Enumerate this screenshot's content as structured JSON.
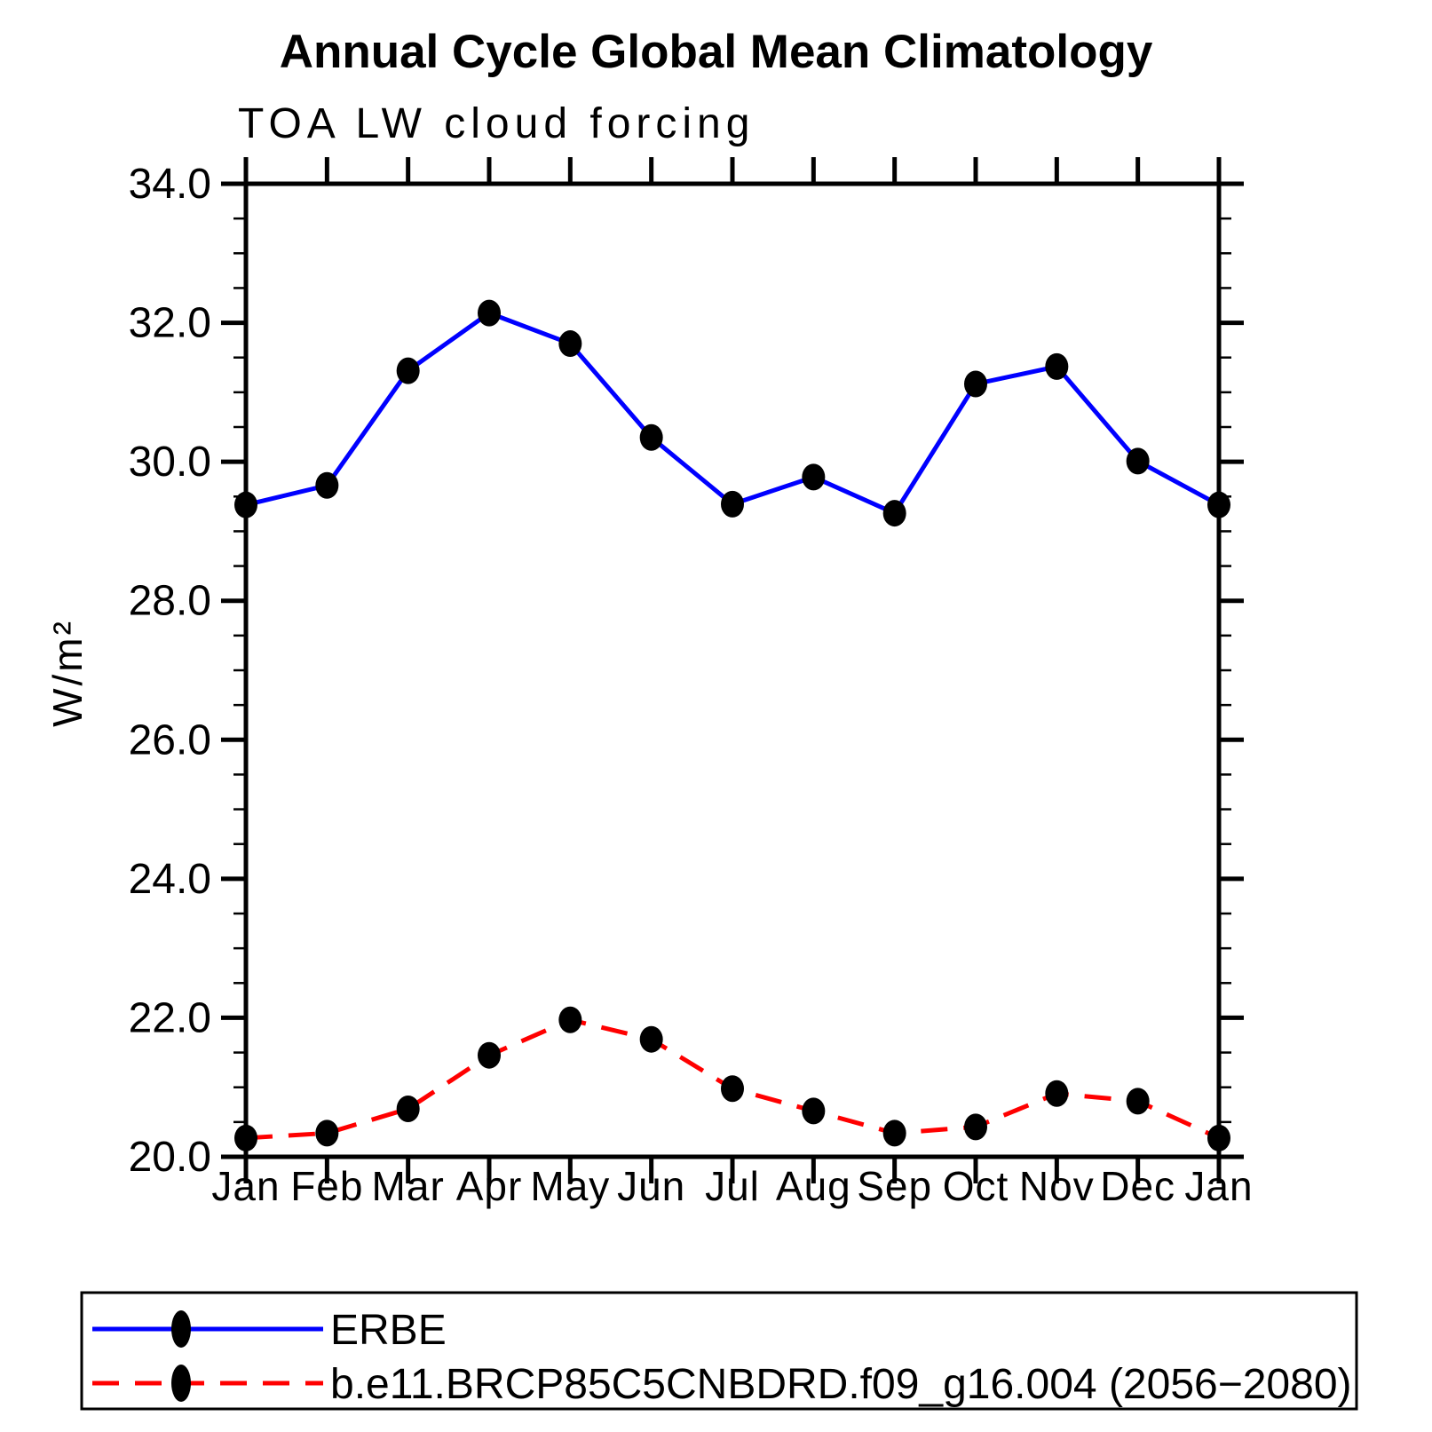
{
  "figure": {
    "title": "Annual Cycle Global Mean Climatology",
    "subtitle": "TOA LW cloud forcing",
    "y_axis_title": "W/m²"
  },
  "chart_data": {
    "type": "line",
    "title": "Annual Cycle Global Mean Climatology",
    "subtitle": "TOA LW cloud forcing",
    "xlabel": "",
    "ylabel": "W/m²",
    "categories": [
      "Jan",
      "Feb",
      "Mar",
      "Apr",
      "May",
      "Jun",
      "Jul",
      "Aug",
      "Sep",
      "Oct",
      "Nov",
      "Dec",
      "Jan"
    ],
    "ylim": [
      20.0,
      34.0
    ],
    "ytick_labels": [
      "20.0",
      "22.0",
      "24.0",
      "26.0",
      "28.0",
      "30.0",
      "32.0",
      "34.0"
    ],
    "ytick_major_interval": 2.0,
    "ytick_minor_interval": 0.5,
    "grid": false,
    "legend_position": "bottom-left-box",
    "series": [
      {
        "name": "ERBE",
        "line_style": "solid",
        "color": "#0000ff",
        "marker": "filled-circle",
        "marker_color": "#000000",
        "values": [
          29.38,
          29.66,
          31.31,
          32.14,
          31.7,
          30.35,
          29.39,
          29.78,
          29.26,
          31.12,
          31.37,
          30.01,
          29.38
        ]
      },
      {
        "name": "b.e11.BRCP85C5CNBDRD.f09_g16.004 (2056−2080)",
        "line_style": "dashed",
        "color": "#ff0000",
        "marker": "filled-circle",
        "marker_color": "#000000",
        "values": [
          20.27,
          20.34,
          20.69,
          21.46,
          21.97,
          21.69,
          20.98,
          20.66,
          20.34,
          20.43,
          20.91,
          20.8,
          20.27
        ]
      }
    ]
  }
}
